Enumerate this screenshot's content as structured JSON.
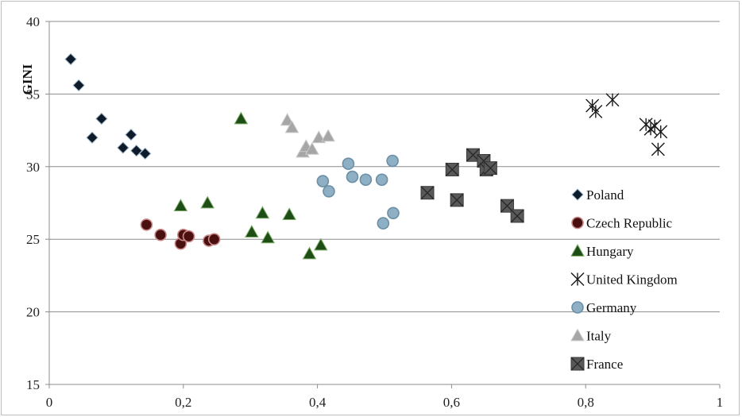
{
  "chart_data": {
    "type": "scatter",
    "ylabel": "GINI",
    "xlabel": "",
    "xlim": [
      0,
      1
    ],
    "ylim": [
      15,
      40
    ],
    "x_ticks": [
      "0",
      "0,2",
      "0,4",
      "0,6",
      "0,8",
      "1"
    ],
    "x_tick_values": [
      0,
      0.2,
      0.4,
      0.6,
      0.8,
      1
    ],
    "y_ticks": [
      "15",
      "20",
      "25",
      "30",
      "35",
      "40"
    ],
    "y_tick_values": [
      15,
      20,
      25,
      30,
      35,
      40
    ],
    "grid": "horizontal",
    "legend_position": "right",
    "series": [
      {
        "name": "Poland",
        "marker": "diamond",
        "color": "#0d1b2a",
        "points": [
          [
            0.032,
            37.4
          ],
          [
            0.044,
            35.6
          ],
          [
            0.064,
            32.0
          ],
          [
            0.078,
            33.3
          ],
          [
            0.11,
            31.3
          ],
          [
            0.122,
            32.2
          ],
          [
            0.13,
            31.1
          ],
          [
            0.143,
            30.9
          ]
        ]
      },
      {
        "name": "Czech Republic",
        "marker": "circle",
        "color": "#4a0f0f",
        "points": [
          [
            0.145,
            26.0
          ],
          [
            0.166,
            25.3
          ],
          [
            0.196,
            24.7
          ],
          [
            0.2,
            25.3
          ],
          [
            0.208,
            25.2
          ],
          [
            0.238,
            24.9
          ],
          [
            0.246,
            25.0
          ]
        ]
      },
      {
        "name": "Hungary",
        "marker": "triangle",
        "color": "#1e4d16",
        "points": [
          [
            0.196,
            27.3
          ],
          [
            0.236,
            27.5
          ],
          [
            0.286,
            33.3
          ],
          [
            0.302,
            25.5
          ],
          [
            0.318,
            26.8
          ],
          [
            0.326,
            25.1
          ],
          [
            0.358,
            26.7
          ],
          [
            0.388,
            24.0
          ],
          [
            0.405,
            24.6
          ]
        ]
      },
      {
        "name": "United Kingdom",
        "marker": "asterisk",
        "color": "#1a1a1a",
        "points": [
          [
            0.81,
            34.2
          ],
          [
            0.815,
            33.8
          ],
          [
            0.84,
            34.6
          ],
          [
            0.89,
            32.9
          ],
          [
            0.897,
            32.6
          ],
          [
            0.903,
            32.8
          ],
          [
            0.912,
            32.4
          ],
          [
            0.908,
            31.2
          ]
        ]
      },
      {
        "name": "Germany",
        "marker": "circle",
        "color": "#8fb0c4",
        "points": [
          [
            0.408,
            29.0
          ],
          [
            0.417,
            28.3
          ],
          [
            0.446,
            30.2
          ],
          [
            0.452,
            29.3
          ],
          [
            0.472,
            29.1
          ],
          [
            0.496,
            29.1
          ],
          [
            0.498,
            26.1
          ],
          [
            0.512,
            30.4
          ],
          [
            0.513,
            26.8
          ]
        ]
      },
      {
        "name": "Italy",
        "marker": "triangle",
        "color": "#a6a6a6",
        "points": [
          [
            0.355,
            33.2
          ],
          [
            0.362,
            32.7
          ],
          [
            0.378,
            31.0
          ],
          [
            0.383,
            31.4
          ],
          [
            0.392,
            31.2
          ],
          [
            0.402,
            32.0
          ],
          [
            0.416,
            32.1
          ]
        ]
      },
      {
        "name": "France",
        "marker": "xsquare",
        "color": "#595959",
        "points": [
          [
            0.564,
            28.2
          ],
          [
            0.601,
            29.8
          ],
          [
            0.608,
            27.7
          ],
          [
            0.632,
            30.8
          ],
          [
            0.648,
            30.4
          ],
          [
            0.652,
            29.8
          ],
          [
            0.658,
            29.9
          ],
          [
            0.683,
            27.3
          ],
          [
            0.698,
            26.6
          ]
        ]
      }
    ]
  }
}
